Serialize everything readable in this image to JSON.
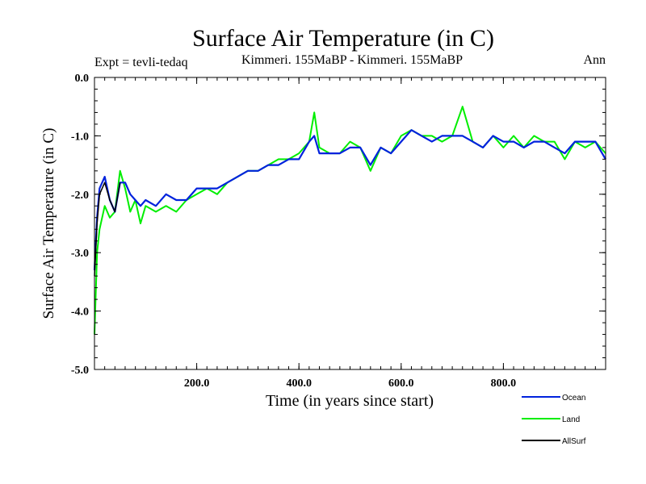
{
  "chart_data": {
    "type": "line",
    "title": "Surface Air Temperature (in C)",
    "subtitle_left": "Expt = tevli-tedaq",
    "subtitle_center": "Kimmeri. 155MaBP - Kimmeri. 155MaBP",
    "subtitle_right": "Ann",
    "xlabel": "Time (in years since start)",
    "ylabel": "Surface Air Temperature (in C)",
    "xlim": [
      0,
      1000
    ],
    "ylim": [
      -5.0,
      0.0
    ],
    "x_ticks": [
      200,
      400,
      600,
      800
    ],
    "x_tick_labels": [
      "200.0",
      "400.0",
      "600.0",
      "800.0"
    ],
    "y_ticks": [
      0,
      -1,
      -2,
      -3,
      -4,
      -5
    ],
    "y_tick_labels": [
      "0.0",
      "-1.0",
      "-2.0",
      "-3.0",
      "-4.0",
      "-5.0"
    ],
    "legend_position": "bottom-right",
    "series": [
      {
        "name": "Land",
        "color": "#00ee00",
        "x": [
          0,
          5,
          10,
          20,
          30,
          40,
          50,
          60,
          70,
          80,
          90,
          100,
          120,
          140,
          160,
          180,
          200,
          220,
          240,
          260,
          280,
          300,
          320,
          340,
          360,
          380,
          400,
          420,
          430,
          440,
          460,
          480,
          500,
          520,
          540,
          560,
          580,
          600,
          620,
          640,
          660,
          680,
          700,
          720,
          740,
          760,
          780,
          800,
          820,
          840,
          860,
          880,
          900,
          920,
          940,
          960,
          980,
          1000
        ],
        "values": [
          -4.4,
          -3.0,
          -2.6,
          -2.2,
          -2.4,
          -2.3,
          -1.6,
          -1.9,
          -2.3,
          -2.1,
          -2.5,
          -2.2,
          -2.3,
          -2.2,
          -2.3,
          -2.1,
          -2.0,
          -1.9,
          -2.0,
          -1.8,
          -1.7,
          -1.6,
          -1.6,
          -1.5,
          -1.4,
          -1.4,
          -1.3,
          -1.1,
          -0.6,
          -1.2,
          -1.3,
          -1.3,
          -1.1,
          -1.2,
          -1.6,
          -1.2,
          -1.3,
          -1.0,
          -0.9,
          -1.0,
          -1.0,
          -1.1,
          -1.0,
          -0.5,
          -1.1,
          -1.2,
          -1.0,
          -1.2,
          -1.0,
          -1.2,
          -1.0,
          -1.1,
          -1.1,
          -1.4,
          -1.1,
          -1.2,
          -1.1,
          -1.3
        ]
      },
      {
        "name": "Ocean",
        "color": "#0022dd",
        "x": [
          0,
          5,
          10,
          20,
          30,
          40,
          50,
          60,
          70,
          80,
          90,
          100,
          120,
          140,
          160,
          180,
          200,
          220,
          240,
          260,
          280,
          300,
          320,
          340,
          360,
          380,
          400,
          420,
          430,
          440,
          460,
          480,
          500,
          520,
          540,
          560,
          580,
          600,
          620,
          640,
          660,
          680,
          700,
          720,
          740,
          760,
          780,
          800,
          820,
          840,
          860,
          880,
          900,
          920,
          940,
          960,
          980,
          1000
        ],
        "values": [
          -3.3,
          -2.4,
          -1.9,
          -1.7,
          -2.1,
          -2.3,
          -1.8,
          -1.8,
          -2.0,
          -2.1,
          -2.2,
          -2.1,
          -2.2,
          -2.0,
          -2.1,
          -2.1,
          -1.9,
          -1.9,
          -1.9,
          -1.8,
          -1.7,
          -1.6,
          -1.6,
          -1.5,
          -1.5,
          -1.4,
          -1.4,
          -1.1,
          -1.0,
          -1.3,
          -1.3,
          -1.3,
          -1.2,
          -1.2,
          -1.5,
          -1.2,
          -1.3,
          -1.1,
          -0.9,
          -1.0,
          -1.1,
          -1.0,
          -1.0,
          -1.0,
          -1.1,
          -1.2,
          -1.0,
          -1.1,
          -1.1,
          -1.2,
          -1.1,
          -1.1,
          -1.2,
          -1.3,
          -1.1,
          -1.1,
          -1.1,
          -1.4
        ]
      },
      {
        "name": "AllSurf",
        "color": "#000000",
        "x": [
          0,
          5,
          10,
          20,
          30,
          40,
          50
        ],
        "values": [
          -3.4,
          -2.5,
          -2.0,
          -1.8,
          -2.1,
          -2.3,
          -1.8
        ]
      }
    ]
  }
}
